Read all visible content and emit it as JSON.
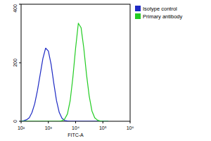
{
  "chart_data": {
    "type": "line",
    "x_label": "FITC-A",
    "log": "x",
    "grid": false,
    "legend": "upper right",
    "xlim": [
      100,
      1000000
    ],
    "xticks": [
      {
        "value": 100,
        "label": "10²"
      },
      {
        "value": 1000,
        "label": "10³"
      },
      {
        "value": 10000,
        "label": "10⁴"
      },
      {
        "value": 100000,
        "label": "10⁵"
      },
      {
        "value": 1000000,
        "label": "10⁶"
      }
    ],
    "ylim": [
      0,
      400
    ],
    "yticks": [
      0,
      200,
      400
    ],
    "x": [
      100,
      126,
      158,
      200,
      251,
      316,
      398,
      501,
      631,
      794,
      1000,
      1259,
      1585,
      1995,
      2512,
      3162,
      3981,
      5012,
      6310,
      7943,
      10000,
      12589,
      15849,
      19953,
      25119,
      31623,
      39811,
      50119,
      63096,
      79433,
      100000,
      125893,
      158489
    ],
    "series": [
      {
        "name": "Isotype control",
        "color": "#1f2bc4",
        "values": [
          0,
          2,
          5,
          12,
          30,
          60,
          105,
          160,
          215,
          250,
          240,
          195,
          130,
          70,
          30,
          10,
          3,
          1,
          0,
          0,
          0,
          0,
          0,
          0,
          0,
          0,
          0,
          0,
          0,
          0,
          0,
          0,
          0
        ]
      },
      {
        "name": "Primary antibody",
        "color": "#22cc22",
        "values": [
          0,
          0,
          0,
          0,
          0,
          0,
          0,
          0,
          0,
          0,
          0,
          0,
          0,
          0,
          0,
          2,
          8,
          25,
          70,
          150,
          250,
          335,
          320,
          250,
          160,
          85,
          35,
          12,
          4,
          1,
          0,
          0,
          0
        ]
      }
    ]
  }
}
